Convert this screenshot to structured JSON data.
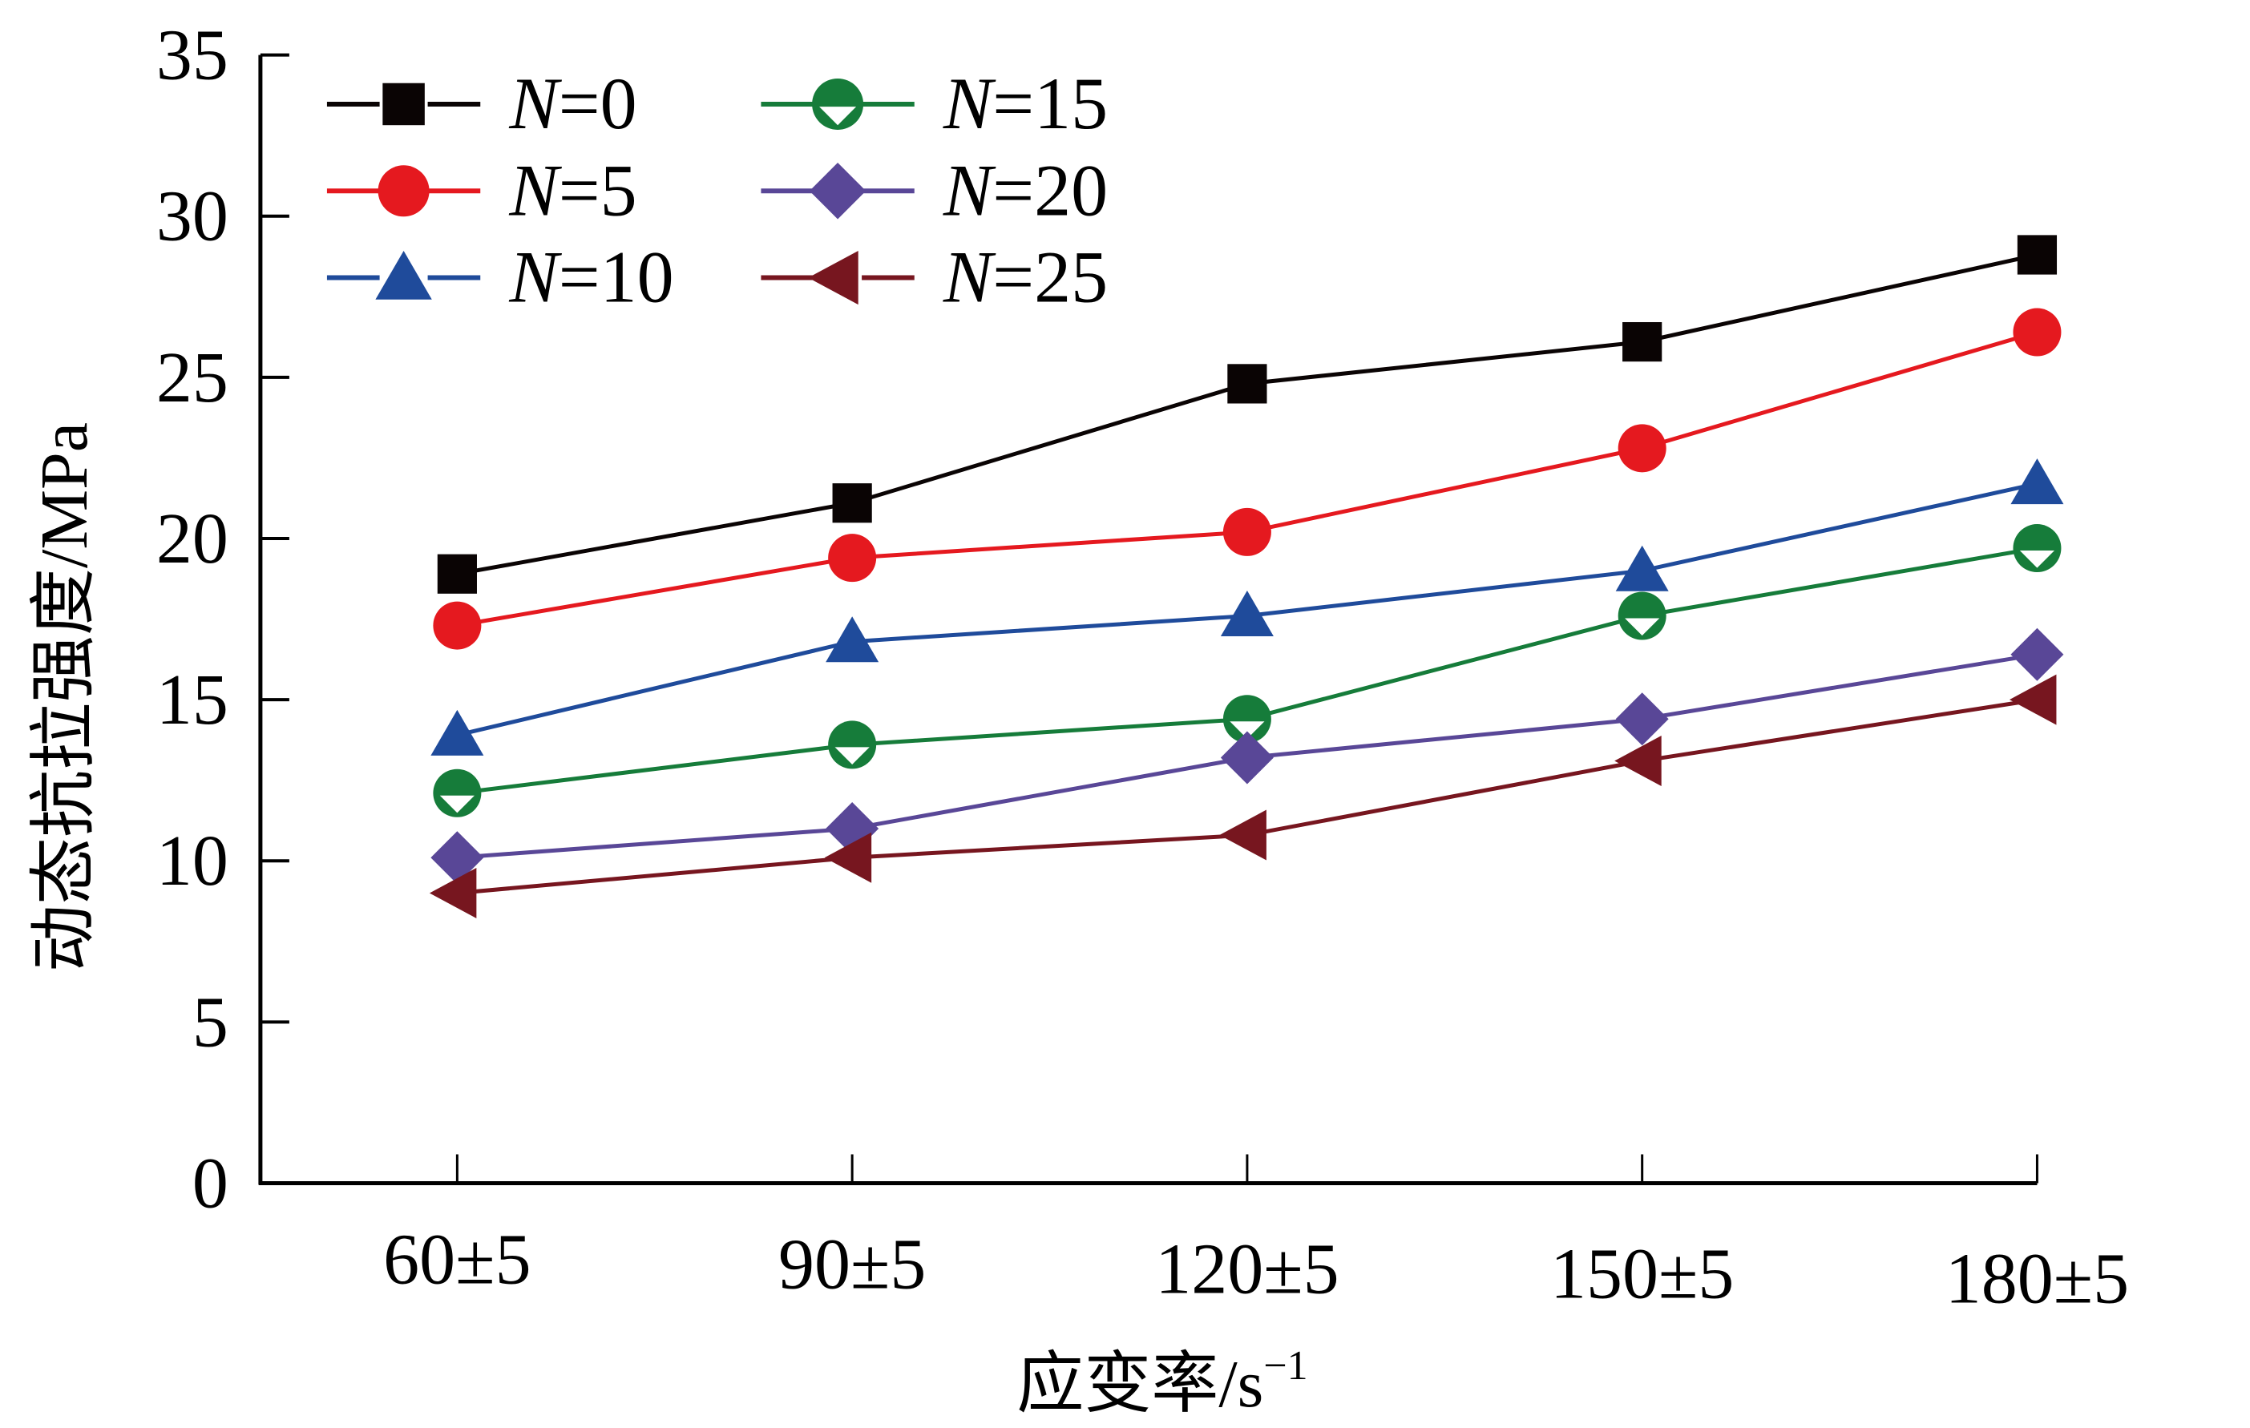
{
  "chart_data": {
    "type": "line",
    "title": "",
    "xlabel": "应变率/s",
    "xlabel_superscript": "−1",
    "ylabel": "动态抗拉强度/MPa",
    "ylim": [
      0,
      35
    ],
    "yticks": [
      0,
      5,
      10,
      15,
      20,
      25,
      30,
      35
    ],
    "categories": [
      "60±5",
      "90±5",
      "120±5",
      "150±5",
      "180±5"
    ],
    "legend_position": "top-left",
    "grid": false,
    "series": [
      {
        "name": "N=0",
        "label_italic": "N",
        "label_rest": "=0",
        "color": "#0a0404",
        "marker": "square",
        "values": [
          18.9,
          21.1,
          24.8,
          26.1,
          28.8
        ]
      },
      {
        "name": "N=5",
        "label_italic": "N",
        "label_rest": "=5",
        "color": "#e5191f",
        "marker": "circle",
        "values": [
          17.3,
          19.4,
          20.2,
          22.8,
          26.4
        ]
      },
      {
        "name": "N=10",
        "label_italic": "N",
        "label_rest": "=10",
        "color": "#1f4b9b",
        "marker": "triangle-up",
        "values": [
          13.9,
          16.8,
          17.6,
          19.0,
          21.7
        ]
      },
      {
        "name": "N=15",
        "label_italic": "N",
        "label_rest": "=15",
        "color": "#167c3a",
        "marker": "circle-half",
        "values": [
          12.1,
          13.6,
          14.4,
          17.6,
          19.7
        ]
      },
      {
        "name": "N=20",
        "label_italic": "N",
        "label_rest": "=20",
        "color": "#594797",
        "marker": "diamond",
        "values": [
          10.1,
          11.0,
          13.2,
          14.4,
          16.4
        ]
      },
      {
        "name": "N=25",
        "label_italic": "N",
        "label_rest": "=25",
        "color": "#77161f",
        "marker": "triangle-left",
        "values": [
          9.0,
          10.1,
          10.8,
          13.1,
          15.0
        ]
      }
    ]
  }
}
